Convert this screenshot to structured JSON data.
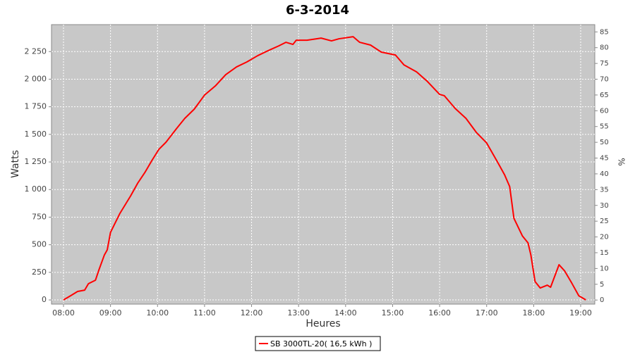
{
  "chart_data": {
    "type": "line",
    "title": "6-3-2014",
    "x_label": "Heures",
    "y_label": "Watts",
    "y2_label": "%",
    "x": [
      8.0,
      8.15,
      8.3,
      8.45,
      8.53,
      8.68,
      8.75,
      8.87,
      8.93,
      9.0,
      9.2,
      9.43,
      9.58,
      9.73,
      9.88,
      10.03,
      10.18,
      10.4,
      10.58,
      10.78,
      11.0,
      11.23,
      11.45,
      11.68,
      11.9,
      12.13,
      12.35,
      12.58,
      12.73,
      12.88,
      12.95,
      13.18,
      13.48,
      13.7,
      13.86,
      14.16,
      14.3,
      14.53,
      14.76,
      15.06,
      15.24,
      15.51,
      15.73,
      16.0,
      16.1,
      16.33,
      16.56,
      16.78,
      17.0,
      17.23,
      17.38,
      17.49,
      17.58,
      17.76,
      17.88,
      17.94,
      18.03,
      18.14,
      18.29,
      18.36,
      18.54,
      18.66,
      18.81,
      18.96,
      19.11
    ],
    "series": [
      {
        "name": "SB 3000TL-20( 16,5 kWh )",
        "color": "#ff0000",
        "values": [
          0,
          38,
          77,
          89,
          147,
          179,
          268,
          408,
          453,
          612,
          784,
          944,
          1059,
          1154,
          1263,
          1365,
          1429,
          1550,
          1645,
          1728,
          1856,
          1939,
          2041,
          2111,
          2156,
          2213,
          2258,
          2302,
          2334,
          2315,
          2353,
          2353,
          2372,
          2347,
          2366,
          2385,
          2334,
          2309,
          2245,
          2219,
          2130,
          2066,
          1983,
          1862,
          1850,
          1735,
          1645,
          1518,
          1422,
          1250,
          1135,
          1027,
          740,
          580,
          517,
          408,
          166,
          108,
          134,
          115,
          319,
          262,
          153,
          38,
          0
        ]
      }
    ],
    "xlim": [
      7.745,
      19.3
    ],
    "xticks": [
      {
        "value": 8,
        "label": "08:00"
      },
      {
        "value": 9,
        "label": "09:00"
      },
      {
        "value": 10,
        "label": "10:00"
      },
      {
        "value": 11,
        "label": "11:00"
      },
      {
        "value": 12,
        "label": "12:00"
      },
      {
        "value": 13,
        "label": "13:00"
      },
      {
        "value": 14,
        "label": "14:00"
      },
      {
        "value": 15,
        "label": "15:00"
      },
      {
        "value": 16,
        "label": "16:00"
      },
      {
        "value": 17,
        "label": "17:00"
      },
      {
        "value": 18,
        "label": "18:00"
      },
      {
        "value": 19,
        "label": "19:00"
      }
    ],
    "ylim": [
      -38,
      2494
    ],
    "yticks": [
      0,
      250,
      500,
      750,
      {
        "value": 1000,
        "label": "1 000"
      },
      {
        "value": 1250,
        "label": "1 250"
      },
      {
        "value": 1500,
        "label": "1 500"
      },
      {
        "value": 1750,
        "label": "1 750"
      },
      {
        "value": 2000,
        "label": "2 000"
      },
      {
        "value": 2250,
        "label": "2 250"
      }
    ],
    "y2lim": [
      -1.3,
      87.3
    ],
    "y2ticks": [
      0,
      5,
      10,
      15,
      20,
      25,
      30,
      35,
      40,
      45,
      50,
      55,
      60,
      65,
      70,
      75,
      80,
      85
    ],
    "grid": true
  }
}
